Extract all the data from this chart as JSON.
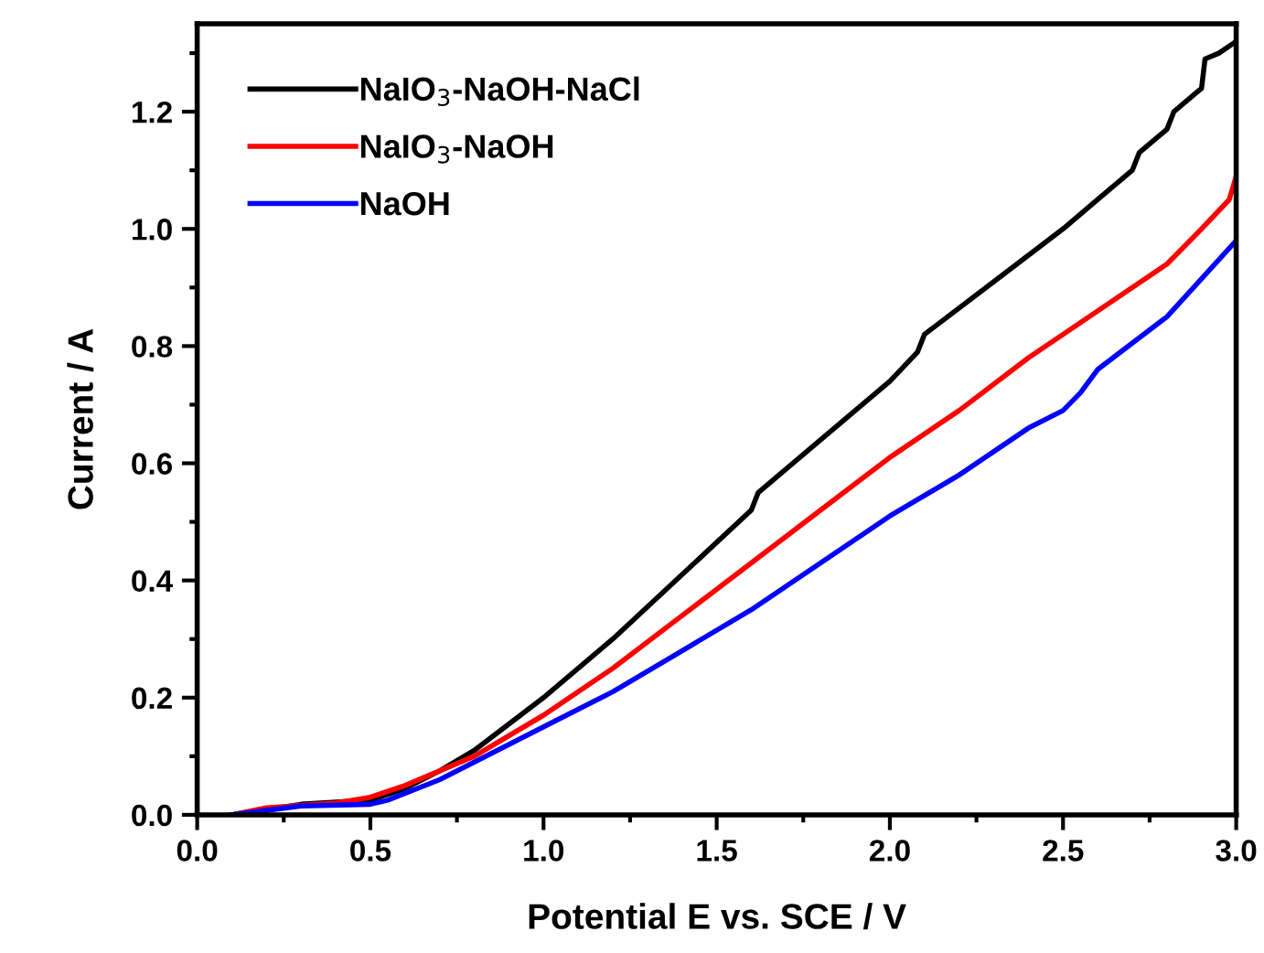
{
  "chart_data": {
    "type": "line",
    "xlabel": "Potential E vs. SCE / V",
    "ylabel": "Current / A",
    "xlim": [
      0.0,
      3.0
    ],
    "ylim": [
      0.0,
      1.35
    ],
    "xticks": [
      {
        "value": 0.0,
        "label": "0.0"
      },
      0.5,
      {
        "value": 1.0,
        "label": "1.0"
      },
      1.5,
      {
        "value": 2.0,
        "label": "2.0"
      },
      2.5,
      {
        "value": 3.0,
        "label": "3.0"
      }
    ],
    "yticks": [
      {
        "value": 0.0,
        "label": "0.0"
      },
      0.2,
      0.4,
      0.6,
      0.8,
      {
        "value": 1.0,
        "label": "1.0"
      },
      1.2
    ],
    "grid": false,
    "legend": "top left",
    "marker": "none",
    "line_style": "solid",
    "series": [
      {
        "name": "NaIO$_{3}$-NaOH-NaCl",
        "color": "#000000",
        "x": [
          0.1,
          0.3,
          0.5,
          0.6,
          0.7,
          0.8,
          1.0,
          1.2,
          1.4,
          1.6,
          1.62,
          1.8,
          2.0,
          2.08,
          2.1,
          2.3,
          2.5,
          2.6,
          2.7,
          2.72,
          2.8,
          2.82,
          2.88,
          2.9,
          2.91,
          2.95,
          3.0
        ],
        "values": [
          0.0,
          0.018,
          0.025,
          0.045,
          0.075,
          0.11,
          0.2,
          0.3,
          0.41,
          0.52,
          0.55,
          0.64,
          0.74,
          0.79,
          0.82,
          0.91,
          1.0,
          1.05,
          1.1,
          1.13,
          1.17,
          1.2,
          1.23,
          1.24,
          1.29,
          1.3,
          1.32
        ]
      },
      {
        "name": "NaIO$_{3}$-NaOH",
        "color": "#ff0000",
        "x": [
          0.1,
          0.2,
          0.4,
          0.5,
          0.6,
          0.7,
          0.8,
          1.0,
          1.2,
          1.4,
          1.6,
          1.8,
          2.0,
          2.2,
          2.4,
          2.6,
          2.8,
          2.9,
          2.98,
          3.0
        ],
        "values": [
          0.0,
          0.012,
          0.02,
          0.03,
          0.05,
          0.075,
          0.1,
          0.17,
          0.25,
          0.34,
          0.43,
          0.52,
          0.61,
          0.69,
          0.78,
          0.86,
          0.94,
          1.0,
          1.05,
          1.09
        ]
      },
      {
        "name": "NaOH",
        "color": "#0000ff",
        "x": [
          0.1,
          0.3,
          0.5,
          0.55,
          0.7,
          1.0,
          1.2,
          1.4,
          1.6,
          1.8,
          2.0,
          2.2,
          2.4,
          2.5,
          2.55,
          2.6,
          2.8,
          3.0
        ],
        "values": [
          0.0,
          0.015,
          0.018,
          0.025,
          0.06,
          0.15,
          0.21,
          0.28,
          0.35,
          0.43,
          0.51,
          0.58,
          0.66,
          0.69,
          0.72,
          0.76,
          0.85,
          0.98
        ]
      }
    ]
  }
}
